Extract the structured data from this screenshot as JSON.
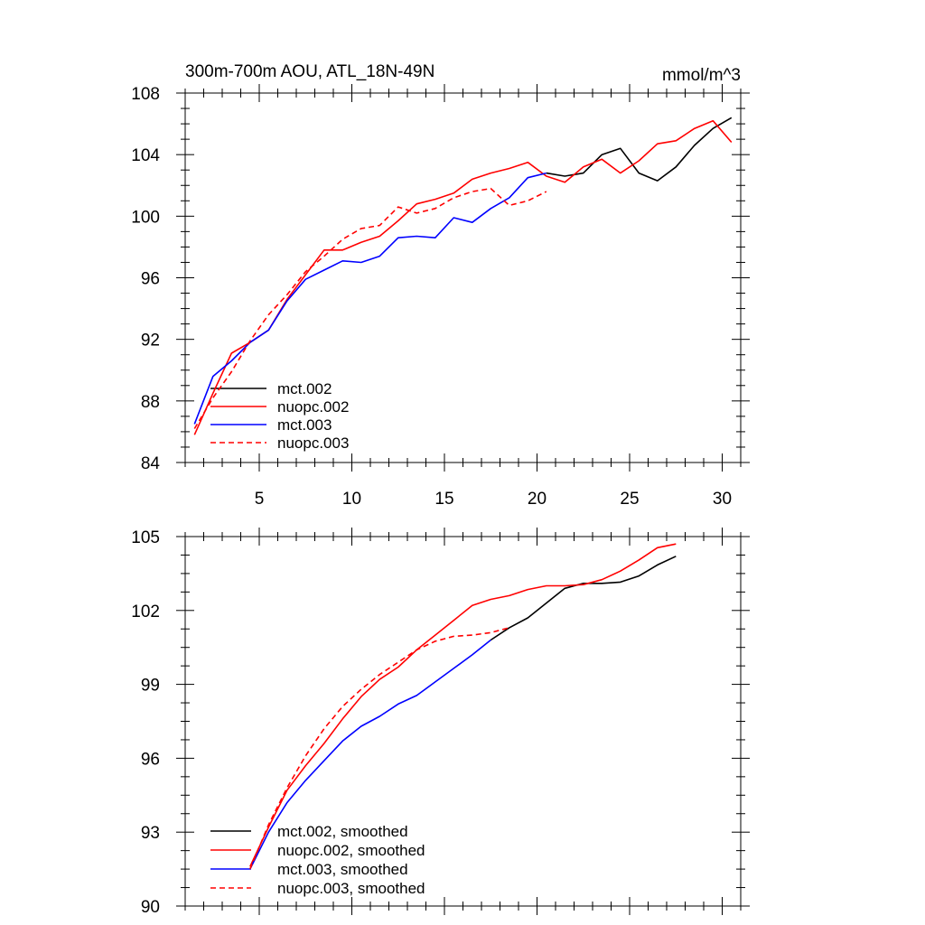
{
  "chart_data": [
    {
      "type": "line",
      "title": "300m-700m AOU, ATL_18N-49N",
      "units": "mmol/m^3",
      "xlim": [
        1,
        31
      ],
      "ylim": [
        84,
        108
      ],
      "xticks": [
        5,
        10,
        15,
        20,
        25,
        30
      ],
      "yticks": [
        84,
        88,
        92,
        96,
        100,
        104,
        108
      ],
      "legend_position": "bottom-left",
      "series": [
        {
          "name": "mct.002",
          "color": "#000000",
          "dash": "solid",
          "x": [
            20.5,
            21.5,
            22.5,
            23.5,
            24.5,
            25.5,
            26.5,
            27.5,
            28.5,
            29.5,
            30.5
          ],
          "y": [
            102.8,
            102.6,
            102.8,
            104.0,
            104.4,
            102.8,
            102.3,
            103.2,
            104.6,
            105.7,
            106.4
          ]
        },
        {
          "name": "nuopc.002",
          "color": "#ff0000",
          "dash": "solid",
          "x": [
            1.5,
            2.5,
            3.5,
            4.5,
            5.5,
            6.5,
            7.5,
            8.5,
            9.5,
            10.5,
            11.5,
            12.5,
            13.5,
            14.5,
            15.5,
            16.5,
            17.5,
            18.5,
            19.5,
            20.5,
            21.5,
            22.5,
            23.5,
            24.5,
            25.5,
            26.5,
            27.5,
            28.5,
            29.5,
            30.5
          ],
          "y": [
            85.8,
            88.5,
            91.1,
            91.8,
            92.6,
            94.6,
            96.2,
            97.8,
            97.8,
            98.3,
            98.7,
            99.7,
            100.8,
            101.1,
            101.5,
            102.4,
            102.8,
            103.1,
            103.5,
            102.6,
            102.2,
            103.2,
            103.7,
            102.8,
            103.6,
            104.7,
            104.9,
            105.7,
            106.2,
            104.8
          ]
        },
        {
          "name": "mct.003",
          "color": "#0000ff",
          "dash": "solid",
          "x": [
            1.5,
            2.5,
            3.5,
            4.5,
            5.5,
            6.5,
            7.5,
            8.5,
            9.5,
            10.5,
            11.5,
            12.5,
            13.5,
            14.5,
            15.5,
            16.5,
            17.5,
            18.5,
            19.5,
            20.5
          ],
          "y": [
            86.5,
            89.6,
            90.6,
            91.8,
            92.6,
            94.5,
            95.9,
            96.5,
            97.1,
            97.0,
            97.4,
            98.6,
            98.7,
            98.6,
            99.9,
            99.6,
            100.5,
            101.2,
            102.5,
            102.8
          ]
        },
        {
          "name": "nuopc.003",
          "color": "#ff0000",
          "dash": "dashed",
          "x": [
            1.5,
            2.5,
            3.5,
            4.5,
            5.5,
            6.5,
            7.5,
            8.5,
            9.5,
            10.5,
            11.5,
            12.5,
            13.5,
            14.5,
            15.5,
            16.5,
            17.5,
            18.5,
            19.5,
            20.5
          ],
          "y": [
            86.2,
            88.2,
            89.9,
            91.9,
            93.6,
            94.9,
            96.4,
            97.4,
            98.5,
            99.2,
            99.4,
            100.6,
            100.2,
            100.5,
            101.2,
            101.6,
            101.8,
            100.7,
            101.0,
            101.6
          ]
        }
      ]
    },
    {
      "type": "line",
      "xlim": [
        1,
        31
      ],
      "ylim": [
        90,
        105
      ],
      "xticks": [
        5,
        10,
        15,
        20,
        25,
        30
      ],
      "yticks": [
        90,
        93,
        96,
        99,
        102,
        105
      ],
      "legend_position": "bottom-left",
      "series": [
        {
          "name": "mct.002, smoothed",
          "color": "#000000",
          "dash": "solid",
          "x": [
            17.5,
            18.5,
            19.5,
            20.5,
            21.5,
            22.5,
            23.5,
            24.5,
            25.5,
            26.5,
            27.5
          ],
          "y": [
            100.8,
            101.3,
            101.7,
            102.3,
            102.9,
            103.1,
            103.1,
            103.15,
            103.4,
            103.85,
            104.2
          ]
        },
        {
          "name": "nuopc.002, smoothed",
          "color": "#ff0000",
          "dash": "solid",
          "x": [
            4.5,
            5.5,
            6.5,
            7.5,
            8.5,
            9.5,
            10.5,
            11.5,
            12.5,
            13.5,
            14.5,
            15.5,
            16.5,
            17.5,
            18.5,
            19.5,
            20.5,
            21.5,
            22.5,
            23.5,
            24.5,
            25.5,
            26.5,
            27.5
          ],
          "y": [
            91.6,
            93.2,
            94.7,
            95.7,
            96.6,
            97.6,
            98.5,
            99.2,
            99.7,
            100.4,
            101.0,
            101.6,
            102.2,
            102.45,
            102.6,
            102.85,
            103.0,
            103.0,
            103.05,
            103.25,
            103.6,
            104.05,
            104.55,
            104.7
          ]
        },
        {
          "name": "mct.003, smoothed",
          "color": "#0000ff",
          "dash": "solid",
          "x": [
            4.5,
            5.5,
            6.5,
            7.5,
            8.5,
            9.5,
            10.5,
            11.5,
            12.5,
            13.5,
            14.5,
            15.5,
            16.5,
            17.5
          ],
          "y": [
            91.5,
            93.0,
            94.2,
            95.1,
            95.9,
            96.7,
            97.3,
            97.7,
            98.2,
            98.55,
            99.1,
            99.65,
            100.2,
            100.8
          ]
        },
        {
          "name": "nuopc.003, smoothed",
          "color": "#ff0000",
          "dash": "dashed",
          "x": [
            4.5,
            5.5,
            6.5,
            7.5,
            8.5,
            9.5,
            10.5,
            11.5,
            12.5,
            13.5,
            14.5,
            15.5,
            16.5,
            17.5,
            18.5
          ],
          "y": [
            91.5,
            93.3,
            94.8,
            96.1,
            97.2,
            98.1,
            98.8,
            99.4,
            99.9,
            100.4,
            100.75,
            100.95,
            101.0,
            101.1,
            101.3
          ]
        }
      ]
    }
  ]
}
